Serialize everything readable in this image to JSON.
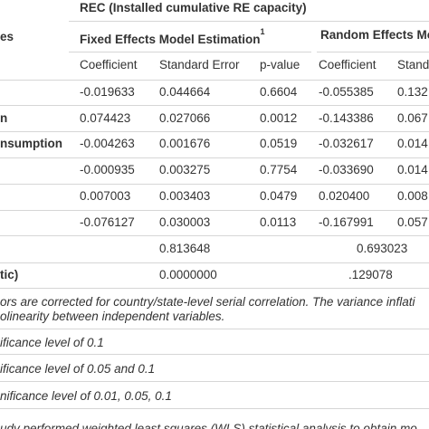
{
  "table": {
    "dependent_header": "REC (Installed cumulative RE capacity)",
    "row_header": "es",
    "fixed_header": "Fixed Effects Model Estimation",
    "fixed_footnote_mark": "1",
    "random_header": "Random Effects Mo",
    "columns": [
      "Coefficient",
      "Standard Error",
      "p-value",
      "Coefficient",
      "Standa"
    ],
    "rows": [
      {
        "label": "",
        "fe_coef": "-0.019633",
        "fe_se": "0.044664",
        "fe_p": "0.6604",
        "re_coef": "-0.055385",
        "re_se": "0.132"
      },
      {
        "label": "n",
        "fe_coef": "0.074423",
        "fe_se": "0.027066",
        "fe_p": "0.0012",
        "re_coef": "-0.143386",
        "re_se": "0.067"
      },
      {
        "label": "nsumption",
        "fe_coef": "-0.004263",
        "fe_se": "0.001676",
        "fe_p": "0.0519",
        "re_coef": "-0.032617",
        "re_se": "0.014"
      },
      {
        "label": "",
        "fe_coef": "-0.000935",
        "fe_se": "0.003275",
        "fe_p": "0.7754",
        "re_coef": "-0.033690",
        "re_se": "0.014"
      },
      {
        "label": "",
        "fe_coef": "0.007003",
        "fe_se": "0.003403",
        "fe_p": "0.0479",
        "re_coef": "0.020400",
        "re_se": "0.008"
      },
      {
        "label": "",
        "fe_coef": "-0.076127",
        "fe_se": "0.030003",
        "fe_p": "0.0113",
        "re_coef": "-0.167991",
        "re_se": "0.057"
      }
    ],
    "summary_rows": [
      {
        "label": "",
        "fe_value": "0.813648",
        "re_value": "0.693023"
      },
      {
        "label": "tic)",
        "fe_value": "0.0000000",
        "re_value": ".129078"
      }
    ]
  },
  "notes": {
    "line1": "ors are corrected for country/state-level serial correlation. The variance inflati",
    "line2": "olinearity between independent variables.",
    "sig1": "ificance level of 0.1",
    "sig2": "ificance level of 0.05 and 0.1",
    "sig3": "nificance level of 0.01, 0.05, 0.1",
    "bottom": "udy performed weighted least squares (WLS) statistical analysis to obtain mo"
  }
}
